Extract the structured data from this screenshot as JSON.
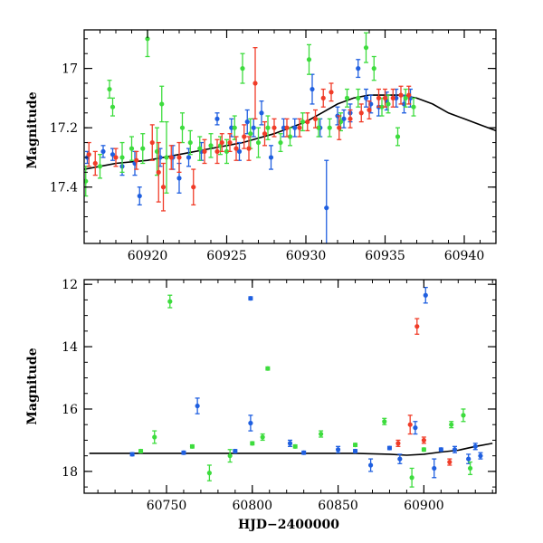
{
  "chart_data": [
    {
      "type": "scatter",
      "panel": "top",
      "title": "",
      "xlabel": "",
      "ylabel": "Magnitude",
      "xlim": [
        60916,
        60942
      ],
      "ylim": [
        17.59,
        16.87
      ],
      "y_inverted": true,
      "grid": false,
      "xticks": [
        60920,
        60925,
        60930,
        60935,
        60940
      ],
      "yticks": [
        17,
        17.2,
        17.4
      ],
      "colors": {
        "blue": "#1f5fe0",
        "green": "#3ddc3d",
        "red": "#f03c28",
        "model": "#000000"
      },
      "model_curve": {
        "x": [
          60916,
          60918,
          60920,
          60922,
          60924,
          60926,
          60928,
          60930,
          60931,
          60932,
          60933,
          60934,
          60935,
          60936,
          60937,
          60938,
          60939,
          60940,
          60941,
          60942
        ],
        "y": [
          17.34,
          17.32,
          17.31,
          17.29,
          17.27,
          17.25,
          17.22,
          17.18,
          17.15,
          17.12,
          17.1,
          17.09,
          17.09,
          17.09,
          17.1,
          17.12,
          17.15,
          17.17,
          17.19,
          17.21
        ]
      },
      "series": [
        {
          "color_key": "blue",
          "points": [
            {
              "x": 60916.2,
              "y": 17.3,
              "e": 0.02
            },
            {
              "x": 60917.2,
              "y": 17.28,
              "e": 0.02
            },
            {
              "x": 60917.8,
              "y": 17.29,
              "e": 0.02
            },
            {
              "x": 60918.4,
              "y": 17.33,
              "e": 0.03
            },
            {
              "x": 60919.2,
              "y": 17.32,
              "e": 0.04
            },
            {
              "x": 60919.5,
              "y": 17.43,
              "e": 0.03
            },
            {
              "x": 60920.8,
              "y": 17.3,
              "e": 0.03
            },
            {
              "x": 60921.6,
              "y": 17.3,
              "e": 0.04
            },
            {
              "x": 60922.0,
              "y": 17.37,
              "e": 0.05
            },
            {
              "x": 60922.6,
              "y": 17.3,
              "e": 0.03
            },
            {
              "x": 60923.4,
              "y": 17.28,
              "e": 0.03
            },
            {
              "x": 60924.4,
              "y": 17.17,
              "e": 0.02
            },
            {
              "x": 60925.3,
              "y": 17.2,
              "e": 0.03
            },
            {
              "x": 60925.8,
              "y": 17.28,
              "e": 0.03
            },
            {
              "x": 60926.3,
              "y": 17.18,
              "e": 0.04
            },
            {
              "x": 60926.7,
              "y": 17.2,
              "e": 0.03
            },
            {
              "x": 60927.2,
              "y": 17.15,
              "e": 0.04
            },
            {
              "x": 60927.8,
              "y": 17.3,
              "e": 0.04
            },
            {
              "x": 60928.6,
              "y": 17.2,
              "e": 0.03
            },
            {
              "x": 60929.3,
              "y": 17.2,
              "e": 0.03
            },
            {
              "x": 60930.4,
              "y": 17.07,
              "e": 0.05
            },
            {
              "x": 60930.9,
              "y": 17.2,
              "e": 0.03
            },
            {
              "x": 60931.3,
              "y": 17.47,
              "e": 0.16
            },
            {
              "x": 60932.0,
              "y": 17.16,
              "e": 0.03
            },
            {
              "x": 60932.4,
              "y": 17.17,
              "e": 0.03
            },
            {
              "x": 60932.8,
              "y": 17.15,
              "e": 0.03
            },
            {
              "x": 60933.3,
              "y": 17.0,
              "e": 0.03
            },
            {
              "x": 60933.8,
              "y": 17.1,
              "e": 0.03
            },
            {
              "x": 60934.1,
              "y": 17.12,
              "e": 0.03
            },
            {
              "x": 60934.6,
              "y": 17.13,
              "e": 0.03
            },
            {
              "x": 60935.1,
              "y": 17.11,
              "e": 0.03
            },
            {
              "x": 60935.7,
              "y": 17.1,
              "e": 0.03
            },
            {
              "x": 60936.2,
              "y": 17.12,
              "e": 0.03
            },
            {
              "x": 60936.6,
              "y": 17.1,
              "e": 0.03
            }
          ]
        },
        {
          "color_key": "green",
          "points": [
            {
              "x": 60916.1,
              "y": 17.38,
              "e": 0.05
            },
            {
              "x": 60917.0,
              "y": 17.33,
              "e": 0.04
            },
            {
              "x": 60917.6,
              "y": 17.07,
              "e": 0.03
            },
            {
              "x": 60917.8,
              "y": 17.13,
              "e": 0.03
            },
            {
              "x": 60918.4,
              "y": 17.3,
              "e": 0.05
            },
            {
              "x": 60919.0,
              "y": 17.27,
              "e": 0.04
            },
            {
              "x": 60919.7,
              "y": 17.27,
              "e": 0.05
            },
            {
              "x": 60920.0,
              "y": 16.9,
              "e": 0.06
            },
            {
              "x": 60920.6,
              "y": 17.28,
              "e": 0.08
            },
            {
              "x": 60920.9,
              "y": 17.12,
              "e": 0.06
            },
            {
              "x": 60921.2,
              "y": 17.3,
              "e": 0.12
            },
            {
              "x": 60922.2,
              "y": 17.2,
              "e": 0.05
            },
            {
              "x": 60922.7,
              "y": 17.25,
              "e": 0.04
            },
            {
              "x": 60923.3,
              "y": 17.27,
              "e": 0.04
            },
            {
              "x": 60924.0,
              "y": 17.26,
              "e": 0.04
            },
            {
              "x": 60924.6,
              "y": 17.26,
              "e": 0.03
            },
            {
              "x": 60925.0,
              "y": 17.28,
              "e": 0.04
            },
            {
              "x": 60925.5,
              "y": 17.2,
              "e": 0.04
            },
            {
              "x": 60926.0,
              "y": 17.0,
              "e": 0.05
            },
            {
              "x": 60926.5,
              "y": 17.22,
              "e": 0.05
            },
            {
              "x": 60927.0,
              "y": 17.25,
              "e": 0.05
            },
            {
              "x": 60927.6,
              "y": 17.2,
              "e": 0.04
            },
            {
              "x": 60928.4,
              "y": 17.25,
              "e": 0.03
            },
            {
              "x": 60929.0,
              "y": 17.23,
              "e": 0.03
            },
            {
              "x": 60929.8,
              "y": 17.18,
              "e": 0.03
            },
            {
              "x": 60930.2,
              "y": 16.97,
              "e": 0.05
            },
            {
              "x": 60930.8,
              "y": 17.2,
              "e": 0.03
            },
            {
              "x": 60931.5,
              "y": 17.2,
              "e": 0.03
            },
            {
              "x": 60932.2,
              "y": 17.18,
              "e": 0.03
            },
            {
              "x": 60932.6,
              "y": 17.1,
              "e": 0.03
            },
            {
              "x": 60933.3,
              "y": 17.1,
              "e": 0.03
            },
            {
              "x": 60933.8,
              "y": 16.93,
              "e": 0.05
            },
            {
              "x": 60934.3,
              "y": 17.0,
              "e": 0.04
            },
            {
              "x": 60934.8,
              "y": 17.13,
              "e": 0.03
            },
            {
              "x": 60935.2,
              "y": 17.12,
              "e": 0.03
            },
            {
              "x": 60935.8,
              "y": 17.23,
              "e": 0.03
            },
            {
              "x": 60936.3,
              "y": 17.1,
              "e": 0.03
            },
            {
              "x": 60936.8,
              "y": 17.13,
              "e": 0.03
            }
          ]
        },
        {
          "color_key": "red",
          "points": [
            {
              "x": 60916.3,
              "y": 17.29,
              "e": 0.04
            },
            {
              "x": 60916.7,
              "y": 17.32,
              "e": 0.04
            },
            {
              "x": 60918.0,
              "y": 17.3,
              "e": 0.03
            },
            {
              "x": 60919.3,
              "y": 17.31,
              "e": 0.03
            },
            {
              "x": 60920.3,
              "y": 17.25,
              "e": 0.06
            },
            {
              "x": 60920.7,
              "y": 17.35,
              "e": 0.1
            },
            {
              "x": 60921.0,
              "y": 17.4,
              "e": 0.08
            },
            {
              "x": 60921.5,
              "y": 17.3,
              "e": 0.04
            },
            {
              "x": 60922.0,
              "y": 17.3,
              "e": 0.05
            },
            {
              "x": 60922.9,
              "y": 17.4,
              "e": 0.06
            },
            {
              "x": 60923.6,
              "y": 17.28,
              "e": 0.04
            },
            {
              "x": 60924.4,
              "y": 17.28,
              "e": 0.04
            },
            {
              "x": 60924.7,
              "y": 17.25,
              "e": 0.03
            },
            {
              "x": 60925.2,
              "y": 17.25,
              "e": 0.03
            },
            {
              "x": 60925.6,
              "y": 17.27,
              "e": 0.04
            },
            {
              "x": 60926.1,
              "y": 17.23,
              "e": 0.04
            },
            {
              "x": 60926.4,
              "y": 17.27,
              "e": 0.04
            },
            {
              "x": 60926.8,
              "y": 17.05,
              "e": 0.12
            },
            {
              "x": 60927.4,
              "y": 17.22,
              "e": 0.04
            },
            {
              "x": 60928.0,
              "y": 17.2,
              "e": 0.03
            },
            {
              "x": 60928.8,
              "y": 17.2,
              "e": 0.03
            },
            {
              "x": 60929.6,
              "y": 17.2,
              "e": 0.03
            },
            {
              "x": 60930.1,
              "y": 17.18,
              "e": 0.03
            },
            {
              "x": 60930.6,
              "y": 17.17,
              "e": 0.03
            },
            {
              "x": 60931.1,
              "y": 17.1,
              "e": 0.03
            },
            {
              "x": 60931.6,
              "y": 17.08,
              "e": 0.03
            },
            {
              "x": 60932.1,
              "y": 17.2,
              "e": 0.04
            },
            {
              "x": 60932.8,
              "y": 17.17,
              "e": 0.03
            },
            {
              "x": 60933.5,
              "y": 17.15,
              "e": 0.03
            },
            {
              "x": 60934.0,
              "y": 17.14,
              "e": 0.03
            },
            {
              "x": 60934.6,
              "y": 17.1,
              "e": 0.03
            },
            {
              "x": 60935.0,
              "y": 17.1,
              "e": 0.03
            },
            {
              "x": 60935.5,
              "y": 17.1,
              "e": 0.03
            },
            {
              "x": 60936.0,
              "y": 17.09,
              "e": 0.03
            },
            {
              "x": 60936.5,
              "y": 17.09,
              "e": 0.03
            }
          ]
        }
      ]
    },
    {
      "type": "scatter",
      "panel": "bottom",
      "title": "",
      "xlabel": "HJD−2400000",
      "ylabel": "Magnitude",
      "xlim": [
        60702,
        60942
      ],
      "ylim": [
        18.7,
        11.85
      ],
      "y_inverted": true,
      "grid": false,
      "xticks": [
        60750,
        60800,
        60850,
        60900
      ],
      "yticks": [
        12,
        14,
        16,
        18
      ],
      "colors": {
        "blue": "#1f5fe0",
        "green": "#3ddc3d",
        "red": "#f03c28",
        "model": "#000000"
      },
      "model_curve": {
        "x": [
          60705,
          60720,
          60740,
          60760,
          60780,
          60800,
          60820,
          60840,
          60860,
          60880,
          60890,
          60900,
          60910,
          60920,
          60930,
          60940
        ],
        "y": [
          17.42,
          17.42,
          17.42,
          17.42,
          17.42,
          17.42,
          17.42,
          17.42,
          17.42,
          17.45,
          17.48,
          17.45,
          17.38,
          17.32,
          17.2,
          17.1
        ]
      },
      "series": [
        {
          "color_key": "blue",
          "points": [
            {
              "x": 60768,
              "y": 15.9,
              "e": 0.25
            },
            {
              "x": 60799,
              "y": 12.45,
              "e": 0.05
            },
            {
              "x": 60799,
              "y": 16.45,
              "e": 0.25
            },
            {
              "x": 60822,
              "y": 17.1,
              "e": 0.1
            },
            {
              "x": 60850,
              "y": 17.3,
              "e": 0.1
            },
            {
              "x": 60869,
              "y": 17.8,
              "e": 0.2
            },
            {
              "x": 60886,
              "y": 17.6,
              "e": 0.15
            },
            {
              "x": 60895,
              "y": 16.6,
              "e": 0.2
            },
            {
              "x": 60901,
              "y": 12.35,
              "e": 0.25
            },
            {
              "x": 60906,
              "y": 17.9,
              "e": 0.3
            },
            {
              "x": 60918,
              "y": 17.3,
              "e": 0.1
            },
            {
              "x": 60926,
              "y": 17.6,
              "e": 0.15
            },
            {
              "x": 60930,
              "y": 17.2,
              "e": 0.1
            },
            {
              "x": 60933,
              "y": 17.5,
              "e": 0.1
            },
            {
              "x": 60730,
              "y": 17.45,
              "e": 0.05
            },
            {
              "x": 60760,
              "y": 17.4,
              "e": 0.05
            },
            {
              "x": 60790,
              "y": 17.35,
              "e": 0.05
            },
            {
              "x": 60830,
              "y": 17.4,
              "e": 0.05
            },
            {
              "x": 60860,
              "y": 17.35,
              "e": 0.05
            },
            {
              "x": 60880,
              "y": 17.25,
              "e": 0.05
            },
            {
              "x": 60910,
              "y": 17.3,
              "e": 0.05
            }
          ]
        },
        {
          "color_key": "green",
          "points": [
            {
              "x": 60752,
              "y": 12.55,
              "e": 0.2
            },
            {
              "x": 60809,
              "y": 14.7,
              "e": 0.05
            },
            {
              "x": 60743,
              "y": 16.9,
              "e": 0.2
            },
            {
              "x": 60775,
              "y": 18.05,
              "e": 0.25
            },
            {
              "x": 60787,
              "y": 17.5,
              "e": 0.2
            },
            {
              "x": 60806,
              "y": 16.9,
              "e": 0.1
            },
            {
              "x": 60840,
              "y": 16.8,
              "e": 0.1
            },
            {
              "x": 60877,
              "y": 16.4,
              "e": 0.1
            },
            {
              "x": 60893,
              "y": 18.2,
              "e": 0.3
            },
            {
              "x": 60916,
              "y": 16.5,
              "e": 0.1
            },
            {
              "x": 60923,
              "y": 16.2,
              "e": 0.2
            },
            {
              "x": 60927,
              "y": 17.9,
              "e": 0.2
            },
            {
              "x": 60735,
              "y": 17.35,
              "e": 0.05
            },
            {
              "x": 60765,
              "y": 17.2,
              "e": 0.05
            },
            {
              "x": 60800,
              "y": 17.1,
              "e": 0.05
            },
            {
              "x": 60825,
              "y": 17.2,
              "e": 0.05
            },
            {
              "x": 60860,
              "y": 17.15,
              "e": 0.05
            },
            {
              "x": 60900,
              "y": 17.3,
              "e": 0.05
            }
          ]
        },
        {
          "color_key": "red",
          "points": [
            {
              "x": 60896,
              "y": 13.35,
              "e": 0.25
            },
            {
              "x": 60892,
              "y": 16.5,
              "e": 0.3
            },
            {
              "x": 60885,
              "y": 17.1,
              "e": 0.1
            },
            {
              "x": 60900,
              "y": 17.0,
              "e": 0.1
            },
            {
              "x": 60915,
              "y": 17.7,
              "e": 0.1
            }
          ]
        }
      ]
    }
  ]
}
